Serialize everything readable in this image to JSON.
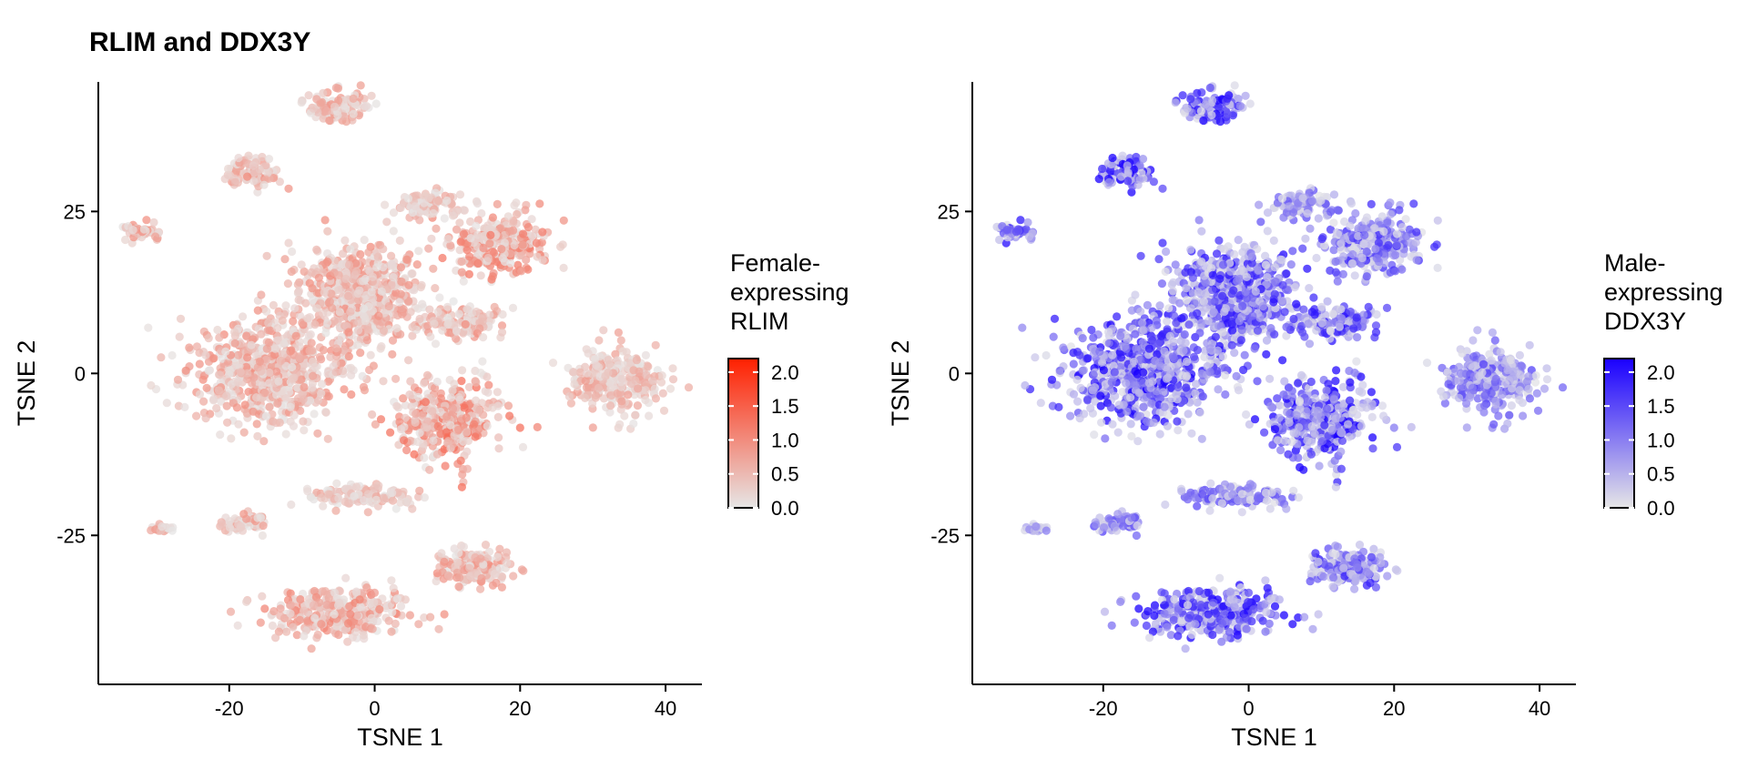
{
  "title": "RLIM and DDX3Y",
  "chart_data": [
    {
      "type": "scatter",
      "gene": "RLIM",
      "xlabel": "TSNE 1",
      "ylabel": "TSNE 2",
      "xlim": [
        -38,
        45
      ],
      "ylim": [
        -48,
        45
      ],
      "xticks": [
        -20,
        0,
        20,
        40
      ],
      "yticks": [
        25,
        0,
        -25
      ],
      "xtick_labels": [
        "-20",
        "0",
        "20",
        "40"
      ],
      "ytick_labels": [
        "25",
        "0",
        "-25"
      ],
      "legend": {
        "title_lines": [
          "Female-",
          "expressing",
          "RLIM"
        ],
        "ticks": [
          2.0,
          1.5,
          1.0,
          0.5,
          0.0
        ],
        "tick_labels": [
          "2.0",
          "1.5",
          "1.0",
          "0.5",
          "0.0"
        ],
        "range": [
          0,
          2.2
        ],
        "placement": "right"
      },
      "colors": {
        "low": "#e6e6e6",
        "high": "#ff2000"
      },
      "grid": false,
      "clusters": [
        {
          "center": [
            -15,
            0
          ],
          "spread": [
            9.5,
            7.5
          ],
          "mean_expression": 0.55
        },
        {
          "center": [
            -2,
            12
          ],
          "spread": [
            8,
            8
          ],
          "mean_expression": 0.55
        },
        {
          "center": [
            10,
            -7
          ],
          "spread": [
            6.5,
            5.5
          ],
          "mean_expression": 0.75
        },
        {
          "center": [
            17,
            20
          ],
          "spread": [
            6,
            4.5
          ],
          "mean_expression": 0.7
        },
        {
          "center": [
            7,
            26
          ],
          "spread": [
            4,
            2
          ],
          "mean_expression": 0.4
        },
        {
          "center": [
            33,
            -1
          ],
          "spread": [
            6,
            4.5
          ],
          "mean_expression": 0.45
        },
        {
          "center": [
            -5,
            41
          ],
          "spread": [
            4,
            2.2
          ],
          "mean_expression": 0.5
        },
        {
          "center": [
            -17,
            31
          ],
          "spread": [
            3.5,
            2
          ],
          "mean_expression": 0.55
        },
        {
          "center": [
            -32,
            22
          ],
          "spread": [
            2.3,
            1
          ],
          "mean_expression": 0.55
        },
        {
          "center": [
            -5,
            -37
          ],
          "spread": [
            9,
            3.5
          ],
          "mean_expression": 0.6
        },
        {
          "center": [
            14,
            -30
          ],
          "spread": [
            5,
            2.5
          ],
          "mean_expression": 0.55
        },
        {
          "center": [
            -2,
            -19
          ],
          "spread": [
            7,
            1.6
          ],
          "mean_expression": 0.4
        },
        {
          "center": [
            -18,
            -23
          ],
          "spread": [
            3,
            1.3
          ],
          "mean_expression": 0.5
        },
        {
          "center": [
            -29,
            -24
          ],
          "spread": [
            1.2,
            0.5
          ],
          "mean_expression": 0.5
        },
        {
          "center": [
            12,
            8
          ],
          "spread": [
            5,
            2.2
          ],
          "mean_expression": 0.55
        }
      ]
    },
    {
      "type": "scatter",
      "gene": "DDX3Y",
      "xlabel": "TSNE 1",
      "ylabel": "TSNE 2",
      "xlim": [
        -38,
        45
      ],
      "ylim": [
        -48,
        45
      ],
      "xticks": [
        -20,
        0,
        20,
        40
      ],
      "yticks": [
        25,
        0,
        -25
      ],
      "xtick_labels": [
        "-20",
        "0",
        "20",
        "40"
      ],
      "ytick_labels": [
        "25",
        "0",
        "-25"
      ],
      "legend": {
        "title_lines": [
          "Male-",
          "expressing",
          "DDX3Y"
        ],
        "ticks": [
          2.0,
          1.5,
          1.0,
          0.5,
          0.0
        ],
        "tick_labels": [
          "2.0",
          "1.5",
          "1.0",
          "0.5",
          "0.0"
        ],
        "range": [
          0,
          2.2
        ],
        "placement": "right"
      },
      "colors": {
        "low": "#e6e6e6",
        "high": "#1a00ff"
      },
      "grid": false,
      "clusters": [
        {
          "center": [
            -15,
            0
          ],
          "spread": [
            9.5,
            7.5
          ],
          "mean_expression": 1.3
        },
        {
          "center": [
            -2,
            12
          ],
          "spread": [
            8,
            8
          ],
          "mean_expression": 1.2
        },
        {
          "center": [
            10,
            -7
          ],
          "spread": [
            6.5,
            5.5
          ],
          "mean_expression": 1.35
        },
        {
          "center": [
            17,
            20
          ],
          "spread": [
            6,
            4.5
          ],
          "mean_expression": 1.05
        },
        {
          "center": [
            7,
            26
          ],
          "spread": [
            4,
            2
          ],
          "mean_expression": 0.8
        },
        {
          "center": [
            33,
            -1
          ],
          "spread": [
            6,
            4.5
          ],
          "mean_expression": 0.9
        },
        {
          "center": [
            -5,
            41
          ],
          "spread": [
            4,
            2.2
          ],
          "mean_expression": 1.4
        },
        {
          "center": [
            -17,
            31
          ],
          "spread": [
            3.5,
            2
          ],
          "mean_expression": 1.6
        },
        {
          "center": [
            -32,
            22
          ],
          "spread": [
            2.3,
            1
          ],
          "mean_expression": 1.2
        },
        {
          "center": [
            -5,
            -37
          ],
          "spread": [
            9,
            3.5
          ],
          "mean_expression": 1.4
        },
        {
          "center": [
            14,
            -30
          ],
          "spread": [
            5,
            2.5
          ],
          "mean_expression": 1.1
        },
        {
          "center": [
            -2,
            -19
          ],
          "spread": [
            7,
            1.6
          ],
          "mean_expression": 0.9
        },
        {
          "center": [
            -18,
            -23
          ],
          "spread": [
            3,
            1.3
          ],
          "mean_expression": 0.9
        },
        {
          "center": [
            -29,
            -24
          ],
          "spread": [
            1.2,
            0.5
          ],
          "mean_expression": 0.7
        },
        {
          "center": [
            12,
            8
          ],
          "spread": [
            5,
            2.2
          ],
          "mean_expression": 1.2
        }
      ]
    }
  ]
}
